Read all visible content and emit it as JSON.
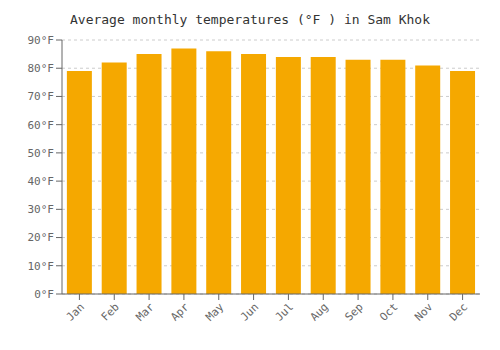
{
  "chart_data": {
    "type": "bar",
    "title": "Average monthly temperatures (°F ) in Sam Khok",
    "categories": [
      "Jan",
      "Feb",
      "Mar",
      "Apr",
      "May",
      "Jun",
      "Jul",
      "Aug",
      "Sep",
      "Oct",
      "Nov",
      "Dec"
    ],
    "values": [
      79,
      82,
      85,
      87,
      86,
      85,
      84,
      84,
      83,
      83,
      81,
      79
    ],
    "color": "#F5A800",
    "ylim": [
      0,
      90
    ],
    "yticks": [
      {
        "value": 0,
        "label": "0°F"
      },
      {
        "value": 10,
        "label": "10°F"
      },
      {
        "value": 20,
        "label": "20°F"
      },
      {
        "value": 30,
        "label": "30°F"
      },
      {
        "value": 40,
        "label": "40°F"
      },
      {
        "value": 50,
        "label": "50°F"
      },
      {
        "value": 60,
        "label": "60°F"
      },
      {
        "value": 70,
        "label": "70°F"
      },
      {
        "value": 80,
        "label": "80°F"
      },
      {
        "value": 90,
        "label": "90°F"
      }
    ],
    "grid": true
  }
}
